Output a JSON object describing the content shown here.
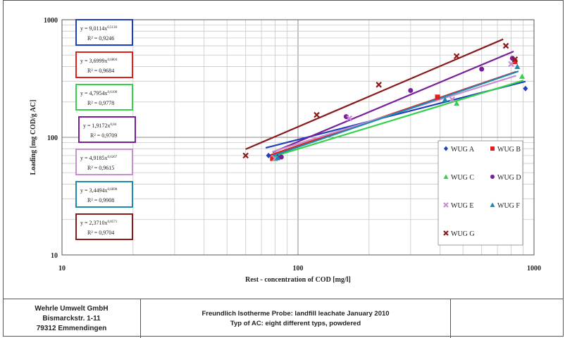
{
  "chart_data": {
    "type": "scatter",
    "xscale": "log",
    "yscale": "log",
    "xlim": [
      10,
      1000
    ],
    "ylim": [
      10,
      1000
    ],
    "xlabel": "Rest - concentration of COD [mg/l]",
    "ylabel": "Loading [mg COD/g AC]",
    "xticks": [
      "10",
      "100",
      "1000"
    ],
    "yticks": [
      "10",
      "100",
      "1000"
    ],
    "grid": true,
    "legend_position": "right",
    "series": [
      {
        "name": "WUG A",
        "color": "#1f3fbf",
        "marker": "diamond",
        "points": [
          [
            75,
            70
          ],
          [
            82,
            68
          ],
          [
            920,
            260
          ]
        ],
        "fit": {
          "a": 9.0114,
          "n": 0.513,
          "xmin": 73,
          "xmax": 920
        }
      },
      {
        "name": "WUG B",
        "color": "#e0201c",
        "marker": "square",
        "points": [
          [
            78,
            66
          ],
          [
            390,
            220
          ],
          [
            830,
            440
          ]
        ],
        "fit": {
          "a": 3.6999,
          "n": 0.6804,
          "xmin": 76,
          "xmax": 840
        }
      },
      {
        "name": "WUG C",
        "color": "#36d14a",
        "marker": "triangle",
        "points": [
          [
            80,
            66
          ],
          [
            470,
            195
          ],
          [
            890,
            330
          ]
        ],
        "fit": {
          "a": 4.7954,
          "n": 0.61,
          "xmin": 78,
          "xmax": 900
        }
      },
      {
        "name": "WUG D",
        "color": "#7a1f9a",
        "marker": "circle",
        "points": [
          [
            85,
            68
          ],
          [
            160,
            150
          ],
          [
            300,
            250
          ],
          [
            600,
            380
          ],
          [
            810,
            470
          ]
        ],
        "fit": {
          "a": 1.9172,
          "n": 0.84,
          "xmin": 78,
          "xmax": 820
        }
      },
      {
        "name": "WUG E",
        "color": "#c88fd0",
        "marker": "x",
        "points": [
          [
            80,
            66
          ],
          [
            165,
            145
          ],
          [
            450,
            210
          ],
          [
            800,
            420
          ]
        ],
        "fit": {
          "a": 4.9185,
          "n": 0.6267,
          "xmin": 78,
          "xmax": 840
        }
      },
      {
        "name": "WUG F",
        "color": "#1d8bb0",
        "marker": "triangle",
        "points": [
          [
            82,
            67
          ],
          [
            420,
            210
          ],
          [
            850,
            400
          ]
        ],
        "fit": {
          "a": 3.4494,
          "n": 0.6898,
          "xmin": 78,
          "xmax": 860
        }
      },
      {
        "name": "WUG G",
        "color": "#8b1a1a",
        "marker": "x",
        "points": [
          [
            60,
            70
          ],
          [
            120,
            155
          ],
          [
            220,
            280
          ],
          [
            470,
            490
          ],
          [
            760,
            600
          ],
          [
            830,
            460
          ]
        ],
        "fit": {
          "a": 2.371,
          "n": 0.8571,
          "xmin": 60,
          "xmax": 740
        }
      }
    ],
    "equations": [
      {
        "eq": "y = 9,0114x",
        "exp": "0,5130",
        "r2": "R² = 0,9246",
        "color": "#1f3fbf"
      },
      {
        "eq": "y = 3,6999x",
        "exp": "0,6804",
        "r2": "R² = 0,9684",
        "color": "#e0201c"
      },
      {
        "eq": "y = 4,7954x",
        "exp": "0,6100",
        "r2": "R² = 0,9778",
        "color": "#36d14a"
      },
      {
        "eq": "y = 1,9172x",
        "exp": "0,84",
        "r2": "R² = 0,9709",
        "color": "#7a1f9a"
      },
      {
        "eq": "y = 4,9185x",
        "exp": "0,6267",
        "r2": "R² = 0,9615",
        "color": "#c88fd0"
      },
      {
        "eq": "y = 3,4494x",
        "exp": "0,6898",
        "r2": "R² = 0,9908",
        "color": "#1d8bb0"
      },
      {
        "eq": "y = 2,3710x",
        "exp": "0,8571",
        "r2": "R² = 0,9704",
        "color": "#8b1a1a"
      }
    ]
  },
  "footer": {
    "company_name": "Wehrle Umwelt GmbH",
    "company_street": "Bismarckstr. 1-11",
    "company_city": "79312 Emmendingen",
    "title_line1": "Freundlich Isotherme  Probe: landfill leachate January 2010",
    "title_line2": "Typ of AC: eight different typs, powdered"
  }
}
